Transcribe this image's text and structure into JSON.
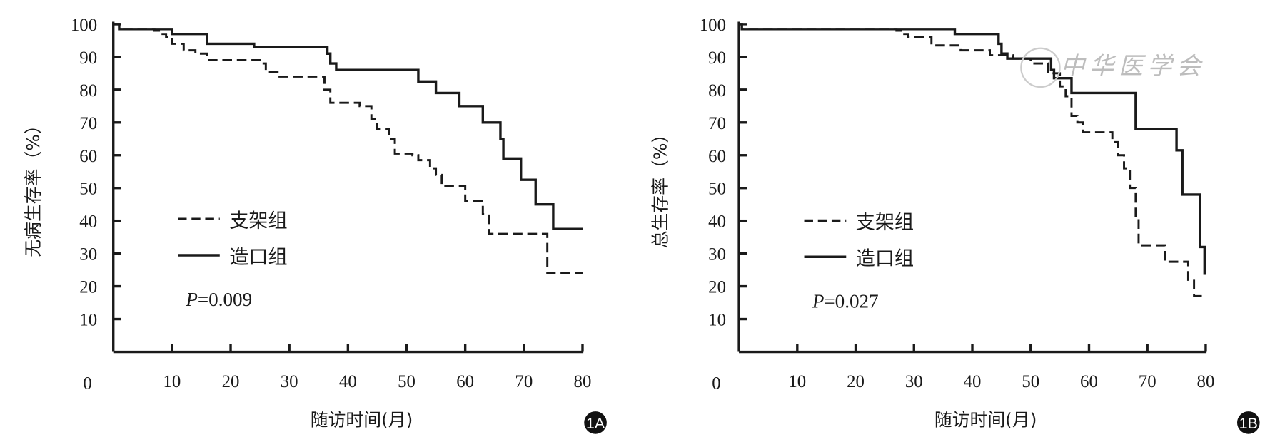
{
  "chart_data": [
    {
      "type": "line",
      "panel": "1A",
      "ylabel": "无病生存率（%）",
      "xlabel": "随访时间(月)",
      "xlim": [
        0,
        80
      ],
      "ylim": [
        0,
        100
      ],
      "xticks": [
        10,
        20,
        30,
        40,
        50,
        60,
        70,
        80
      ],
      "yticks": [
        10,
        20,
        30,
        40,
        50,
        60,
        70,
        80,
        90,
        100
      ],
      "origin_label": "0",
      "p_prefix": "P",
      "p_value": "=0.009",
      "legend_position": "lower-left",
      "series": [
        {
          "name": "支架组",
          "style": "dashed",
          "x": [
            0,
            1,
            7,
            8,
            9,
            10,
            12,
            14,
            16,
            24,
            25,
            26,
            28,
            35,
            36,
            37,
            40,
            42,
            44,
            45,
            47,
            48,
            51,
            52,
            54,
            55,
            56,
            59,
            60,
            62,
            63,
            64,
            73,
            74,
            80
          ],
          "y": [
            100,
            98.5,
            98,
            97,
            96,
            94,
            92,
            91,
            89,
            89,
            88,
            85.5,
            84,
            84,
            80,
            76,
            76,
            75,
            71,
            68,
            65,
            60.5,
            60,
            58.5,
            56,
            54,
            50.5,
            50.5,
            46,
            46,
            42,
            36,
            36,
            24,
            24
          ]
        },
        {
          "name": "造口组",
          "style": "solid",
          "x": [
            0,
            1,
            10,
            16,
            24,
            36,
            36.5,
            37,
            38,
            52,
            55,
            59,
            63,
            66,
            66.5,
            67,
            69.5,
            72,
            75,
            80
          ],
          "y": [
            100,
            98.5,
            97,
            94,
            93,
            93,
            91,
            88,
            86,
            82.5,
            79,
            75,
            70,
            65,
            59,
            59,
            52.5,
            45,
            37.5,
            37.5
          ]
        }
      ]
    },
    {
      "type": "line",
      "panel": "1B",
      "ylabel": "总生存率（%）",
      "xlabel": "随访时间(月)",
      "xlim": [
        0,
        80
      ],
      "ylim": [
        0,
        100
      ],
      "xticks": [
        10,
        20,
        30,
        40,
        50,
        60,
        70,
        80
      ],
      "yticks": [
        10,
        20,
        30,
        40,
        50,
        60,
        70,
        80,
        90,
        100
      ],
      "origin_label": "0",
      "p_prefix": "P",
      "p_value": "=0.027",
      "legend_position": "lower-left",
      "series": [
        {
          "name": "支架组",
          "style": "dashed",
          "x": [
            0,
            0.5,
            27,
            28,
            29,
            33,
            38,
            43,
            47,
            50,
            53,
            55,
            56,
            57,
            58,
            59,
            64,
            65,
            66,
            67,
            68,
            68.5,
            73,
            77,
            78,
            79,
            80
          ],
          "y": [
            100,
            98.5,
            98,
            97,
            96,
            93.5,
            92,
            90.5,
            89.5,
            88,
            85,
            81,
            78,
            72,
            70,
            67,
            64,
            60,
            56,
            50,
            41,
            32.5,
            27.5,
            22,
            17,
            17,
            17
          ]
        },
        {
          "name": "造口组",
          "style": "solid",
          "x": [
            0,
            0.5,
            37,
            44,
            44.5,
            45,
            46,
            53,
            53.5,
            54,
            57,
            68,
            74,
            75,
            76,
            78,
            79,
            79.8
          ],
          "y": [
            100,
            98.5,
            97,
            97,
            94,
            91,
            89.5,
            89.5,
            86,
            83.5,
            79,
            68,
            68,
            61.5,
            48,
            48,
            32,
            23.5
          ]
        }
      ]
    }
  ],
  "watermark": "中华医学会"
}
